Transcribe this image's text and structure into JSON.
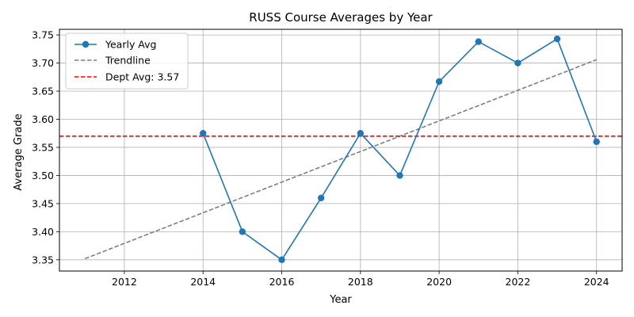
{
  "chart_data": {
    "type": "line",
    "title": "RUSS Course Averages by Year",
    "xlabel": "Year",
    "ylabel": "Average Grade",
    "xlim": [
      2010.35,
      2024.65
    ],
    "ylim": [
      3.33,
      3.76
    ],
    "x_ticks": [
      2012,
      2014,
      2016,
      2018,
      2020,
      2022,
      2024
    ],
    "y_ticks": [
      3.35,
      3.4,
      3.45,
      3.5,
      3.55,
      3.6,
      3.65,
      3.7,
      3.75
    ],
    "grid": true,
    "legend_position": "top-left",
    "series": [
      {
        "name": "Yearly Avg",
        "color": "#1f77b4",
        "style": "solid-with-markers",
        "x": [
          2014,
          2015,
          2016,
          2017,
          2018,
          2019,
          2020,
          2021,
          2022,
          2023,
          2024
        ],
        "y": [
          3.575,
          3.4,
          3.35,
          3.46,
          3.575,
          3.5,
          3.667,
          3.738,
          3.7,
          3.743,
          3.56
        ]
      },
      {
        "name": "Trendline",
        "color": "#7f7f7f",
        "style": "dashed",
        "x": [
          2011,
          2024
        ],
        "y": [
          3.352,
          3.706
        ]
      },
      {
        "name": "Dept Avg: 3.57",
        "color": "#ff0000",
        "style": "dashed-horizontal",
        "value": 3.57
      }
    ]
  }
}
